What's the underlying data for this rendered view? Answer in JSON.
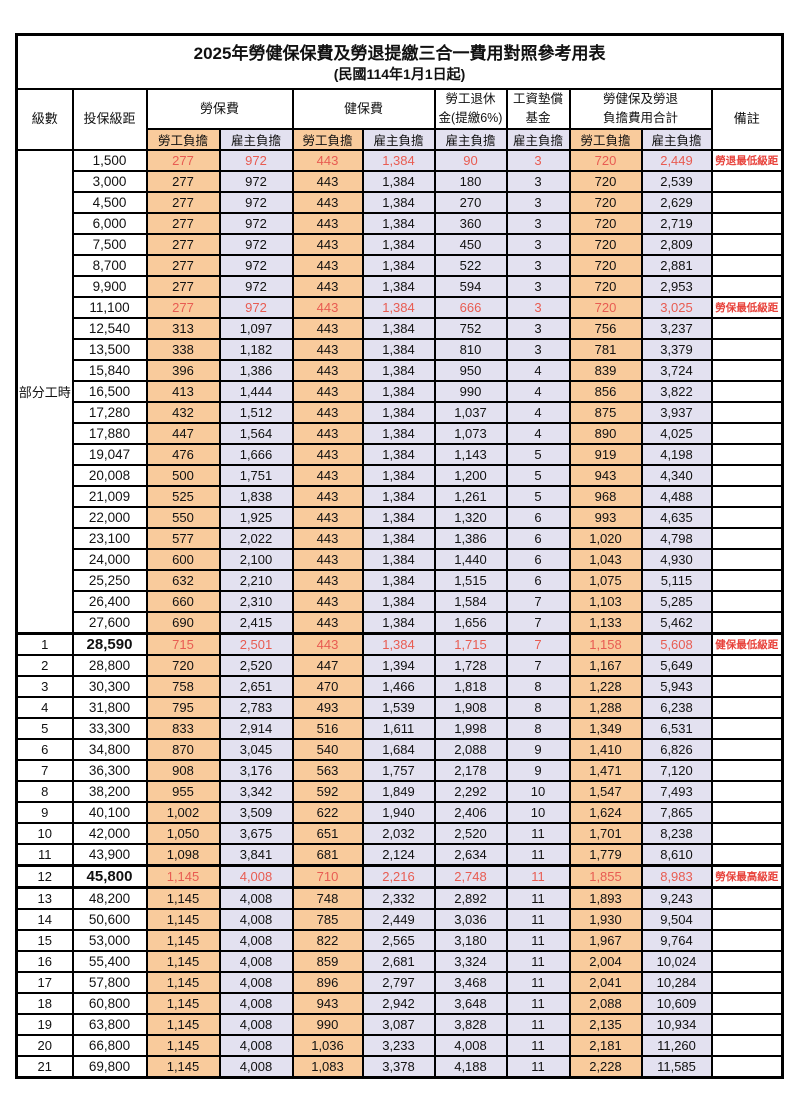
{
  "title": "2025年勞健保保費及勞退提繳三合一費用對照參考用表",
  "subtitle": "(民國114年1月1日起)",
  "colors": {
    "employee_bg": "#F9CB9C",
    "employer_bg": "#E3E1F0",
    "highlight_red": "#E85C52",
    "remark_red": "#E8433C",
    "border": "#000000"
  },
  "header": {
    "level": "級數",
    "bracket": "投保級距",
    "labor": "勞保費",
    "health": "健保費",
    "pension_line1": "勞工退休",
    "pension_line2": "金(提繳6%)",
    "wage_fund_line1": "工資墊償",
    "wage_fund_line2": "基金",
    "total_line1": "勞健保及勞退",
    "total_line2": "負擔費用合計",
    "remark": "備註",
    "employee": "勞工負擔",
    "employer": "雇主負擔"
  },
  "part_time_label": "部分工時",
  "part_time_rowspan": 23,
  "rows": [
    {
      "part_time_start": true,
      "level": "",
      "bracket": "1,500",
      "cells": [
        "277",
        "972",
        "443",
        "1,384",
        "90",
        "3",
        "720",
        "2,449"
      ],
      "remark": "勞退最低級距",
      "highlight": true,
      "bold": false,
      "thick_top": false,
      "thick_bottom": false
    },
    {
      "level": "",
      "bracket": "3,000",
      "cells": [
        "277",
        "972",
        "443",
        "1,384",
        "180",
        "3",
        "720",
        "2,539"
      ],
      "remark": "",
      "highlight": false,
      "bold": false
    },
    {
      "level": "",
      "bracket": "4,500",
      "cells": [
        "277",
        "972",
        "443",
        "1,384",
        "270",
        "3",
        "720",
        "2,629"
      ],
      "remark": "",
      "highlight": false,
      "bold": false
    },
    {
      "level": "",
      "bracket": "6,000",
      "cells": [
        "277",
        "972",
        "443",
        "1,384",
        "360",
        "3",
        "720",
        "2,719"
      ],
      "remark": "",
      "highlight": false,
      "bold": false
    },
    {
      "level": "",
      "bracket": "7,500",
      "cells": [
        "277",
        "972",
        "443",
        "1,384",
        "450",
        "3",
        "720",
        "2,809"
      ],
      "remark": "",
      "highlight": false,
      "bold": false
    },
    {
      "level": "",
      "bracket": "8,700",
      "cells": [
        "277",
        "972",
        "443",
        "1,384",
        "522",
        "3",
        "720",
        "2,881"
      ],
      "remark": "",
      "highlight": false,
      "bold": false
    },
    {
      "level": "",
      "bracket": "9,900",
      "cells": [
        "277",
        "972",
        "443",
        "1,384",
        "594",
        "3",
        "720",
        "2,953"
      ],
      "remark": "",
      "highlight": false,
      "bold": false
    },
    {
      "level": "",
      "bracket": "11,100",
      "cells": [
        "277",
        "972",
        "443",
        "1,384",
        "666",
        "3",
        "720",
        "3,025"
      ],
      "remark": "勞保最低級距",
      "highlight": true,
      "bold": false
    },
    {
      "level": "",
      "bracket": "12,540",
      "cells": [
        "313",
        "1,097",
        "443",
        "1,384",
        "752",
        "3",
        "756",
        "3,237"
      ],
      "remark": "",
      "highlight": false,
      "bold": false
    },
    {
      "level": "",
      "bracket": "13,500",
      "cells": [
        "338",
        "1,182",
        "443",
        "1,384",
        "810",
        "3",
        "781",
        "3,379"
      ],
      "remark": "",
      "highlight": false,
      "bold": false
    },
    {
      "level": "",
      "bracket": "15,840",
      "cells": [
        "396",
        "1,386",
        "443",
        "1,384",
        "950",
        "4",
        "839",
        "3,724"
      ],
      "remark": "",
      "highlight": false,
      "bold": false
    },
    {
      "level": "",
      "bracket": "16,500",
      "cells": [
        "413",
        "1,444",
        "443",
        "1,384",
        "990",
        "4",
        "856",
        "3,822"
      ],
      "remark": "",
      "highlight": false,
      "bold": false
    },
    {
      "level": "",
      "bracket": "17,280",
      "cells": [
        "432",
        "1,512",
        "443",
        "1,384",
        "1,037",
        "4",
        "875",
        "3,937"
      ],
      "remark": "",
      "highlight": false,
      "bold": false
    },
    {
      "level": "",
      "bracket": "17,880",
      "cells": [
        "447",
        "1,564",
        "443",
        "1,384",
        "1,073",
        "4",
        "890",
        "4,025"
      ],
      "remark": "",
      "highlight": false,
      "bold": false
    },
    {
      "level": "",
      "bracket": "19,047",
      "cells": [
        "476",
        "1,666",
        "443",
        "1,384",
        "1,143",
        "5",
        "919",
        "4,198"
      ],
      "remark": "",
      "highlight": false,
      "bold": false
    },
    {
      "level": "",
      "bracket": "20,008",
      "cells": [
        "500",
        "1,751",
        "443",
        "1,384",
        "1,200",
        "5",
        "943",
        "4,340"
      ],
      "remark": "",
      "highlight": false,
      "bold": false
    },
    {
      "level": "",
      "bracket": "21,009",
      "cells": [
        "525",
        "1,838",
        "443",
        "1,384",
        "1,261",
        "5",
        "968",
        "4,488"
      ],
      "remark": "",
      "highlight": false,
      "bold": false
    },
    {
      "level": "",
      "bracket": "22,000",
      "cells": [
        "550",
        "1,925",
        "443",
        "1,384",
        "1,320",
        "6",
        "993",
        "4,635"
      ],
      "remark": "",
      "highlight": false,
      "bold": false
    },
    {
      "level": "",
      "bracket": "23,100",
      "cells": [
        "577",
        "2,022",
        "443",
        "1,384",
        "1,386",
        "6",
        "1,020",
        "4,798"
      ],
      "remark": "",
      "highlight": false,
      "bold": false
    },
    {
      "level": "",
      "bracket": "24,000",
      "cells": [
        "600",
        "2,100",
        "443",
        "1,384",
        "1,440",
        "6",
        "1,043",
        "4,930"
      ],
      "remark": "",
      "highlight": false,
      "bold": false
    },
    {
      "level": "",
      "bracket": "25,250",
      "cells": [
        "632",
        "2,210",
        "443",
        "1,384",
        "1,515",
        "6",
        "1,075",
        "5,115"
      ],
      "remark": "",
      "highlight": false,
      "bold": false
    },
    {
      "level": "",
      "bracket": "26,400",
      "cells": [
        "660",
        "2,310",
        "443",
        "1,384",
        "1,584",
        "7",
        "1,103",
        "5,285"
      ],
      "remark": "",
      "highlight": false,
      "bold": false
    },
    {
      "level": "",
      "bracket": "27,600",
      "cells": [
        "690",
        "2,415",
        "443",
        "1,384",
        "1,656",
        "7",
        "1,133",
        "5,462"
      ],
      "remark": "",
      "highlight": false,
      "bold": false
    },
    {
      "level": "1",
      "bracket": "28,590",
      "cells": [
        "715",
        "2,501",
        "443",
        "1,384",
        "1,715",
        "7",
        "1,158",
        "5,608"
      ],
      "remark": "健保最低級距",
      "highlight": true,
      "bold": true,
      "thick_top": true
    },
    {
      "level": "2",
      "bracket": "28,800",
      "cells": [
        "720",
        "2,520",
        "447",
        "1,394",
        "1,728",
        "7",
        "1,167",
        "5,649"
      ],
      "remark": "",
      "highlight": false,
      "bold": false
    },
    {
      "level": "3",
      "bracket": "30,300",
      "cells": [
        "758",
        "2,651",
        "470",
        "1,466",
        "1,818",
        "8",
        "1,228",
        "5,943"
      ],
      "remark": "",
      "highlight": false,
      "bold": false
    },
    {
      "level": "4",
      "bracket": "31,800",
      "cells": [
        "795",
        "2,783",
        "493",
        "1,539",
        "1,908",
        "8",
        "1,288",
        "6,238"
      ],
      "remark": "",
      "highlight": false,
      "bold": false
    },
    {
      "level": "5",
      "bracket": "33,300",
      "cells": [
        "833",
        "2,914",
        "516",
        "1,611",
        "1,998",
        "8",
        "1,349",
        "6,531"
      ],
      "remark": "",
      "highlight": false,
      "bold": false
    },
    {
      "level": "6",
      "bracket": "34,800",
      "cells": [
        "870",
        "3,045",
        "540",
        "1,684",
        "2,088",
        "9",
        "1,410",
        "6,826"
      ],
      "remark": "",
      "highlight": false,
      "bold": false
    },
    {
      "level": "7",
      "bracket": "36,300",
      "cells": [
        "908",
        "3,176",
        "563",
        "1,757",
        "2,178",
        "9",
        "1,471",
        "7,120"
      ],
      "remark": "",
      "highlight": false,
      "bold": false
    },
    {
      "level": "8",
      "bracket": "38,200",
      "cells": [
        "955",
        "3,342",
        "592",
        "1,849",
        "2,292",
        "10",
        "1,547",
        "7,493"
      ],
      "remark": "",
      "highlight": false,
      "bold": false
    },
    {
      "level": "9",
      "bracket": "40,100",
      "cells": [
        "1,002",
        "3,509",
        "622",
        "1,940",
        "2,406",
        "10",
        "1,624",
        "7,865"
      ],
      "remark": "",
      "highlight": false,
      "bold": false
    },
    {
      "level": "10",
      "bracket": "42,000",
      "cells": [
        "1,050",
        "3,675",
        "651",
        "2,032",
        "2,520",
        "11",
        "1,701",
        "8,238"
      ],
      "remark": "",
      "highlight": false,
      "bold": false
    },
    {
      "level": "11",
      "bracket": "43,900",
      "cells": [
        "1,098",
        "3,841",
        "681",
        "2,124",
        "2,634",
        "11",
        "1,779",
        "8,610"
      ],
      "remark": "",
      "highlight": false,
      "bold": false
    },
    {
      "level": "12",
      "bracket": "45,800",
      "cells": [
        "1,145",
        "4,008",
        "710",
        "2,216",
        "2,748",
        "11",
        "1,855",
        "8,983"
      ],
      "remark": "勞保最高級距",
      "highlight": true,
      "bold": true,
      "thick_top": true,
      "thick_bottom": true
    },
    {
      "level": "13",
      "bracket": "48,200",
      "cells": [
        "1,145",
        "4,008",
        "748",
        "2,332",
        "2,892",
        "11",
        "1,893",
        "9,243"
      ],
      "remark": "",
      "highlight": false,
      "bold": false
    },
    {
      "level": "14",
      "bracket": "50,600",
      "cells": [
        "1,145",
        "4,008",
        "785",
        "2,449",
        "3,036",
        "11",
        "1,930",
        "9,504"
      ],
      "remark": "",
      "highlight": false,
      "bold": false
    },
    {
      "level": "15",
      "bracket": "53,000",
      "cells": [
        "1,145",
        "4,008",
        "822",
        "2,565",
        "3,180",
        "11",
        "1,967",
        "9,764"
      ],
      "remark": "",
      "highlight": false,
      "bold": false
    },
    {
      "level": "16",
      "bracket": "55,400",
      "cells": [
        "1,145",
        "4,008",
        "859",
        "2,681",
        "3,324",
        "11",
        "2,004",
        "10,024"
      ],
      "remark": "",
      "highlight": false,
      "bold": false
    },
    {
      "level": "17",
      "bracket": "57,800",
      "cells": [
        "1,145",
        "4,008",
        "896",
        "2,797",
        "3,468",
        "11",
        "2,041",
        "10,284"
      ],
      "remark": "",
      "highlight": false,
      "bold": false
    },
    {
      "level": "18",
      "bracket": "60,800",
      "cells": [
        "1,145",
        "4,008",
        "943",
        "2,942",
        "3,648",
        "11",
        "2,088",
        "10,609"
      ],
      "remark": "",
      "highlight": false,
      "bold": false
    },
    {
      "level": "19",
      "bracket": "63,800",
      "cells": [
        "1,145",
        "4,008",
        "990",
        "3,087",
        "3,828",
        "11",
        "2,135",
        "10,934"
      ],
      "remark": "",
      "highlight": false,
      "bold": false
    },
    {
      "level": "20",
      "bracket": "66,800",
      "cells": [
        "1,145",
        "4,008",
        "1,036",
        "3,233",
        "4,008",
        "11",
        "2,181",
        "11,260"
      ],
      "remark": "",
      "highlight": false,
      "bold": false
    },
    {
      "level": "21",
      "bracket": "69,800",
      "cells": [
        "1,145",
        "4,008",
        "1,083",
        "3,378",
        "4,188",
        "11",
        "2,228",
        "11,585"
      ],
      "remark": "",
      "highlight": false,
      "bold": false
    }
  ]
}
